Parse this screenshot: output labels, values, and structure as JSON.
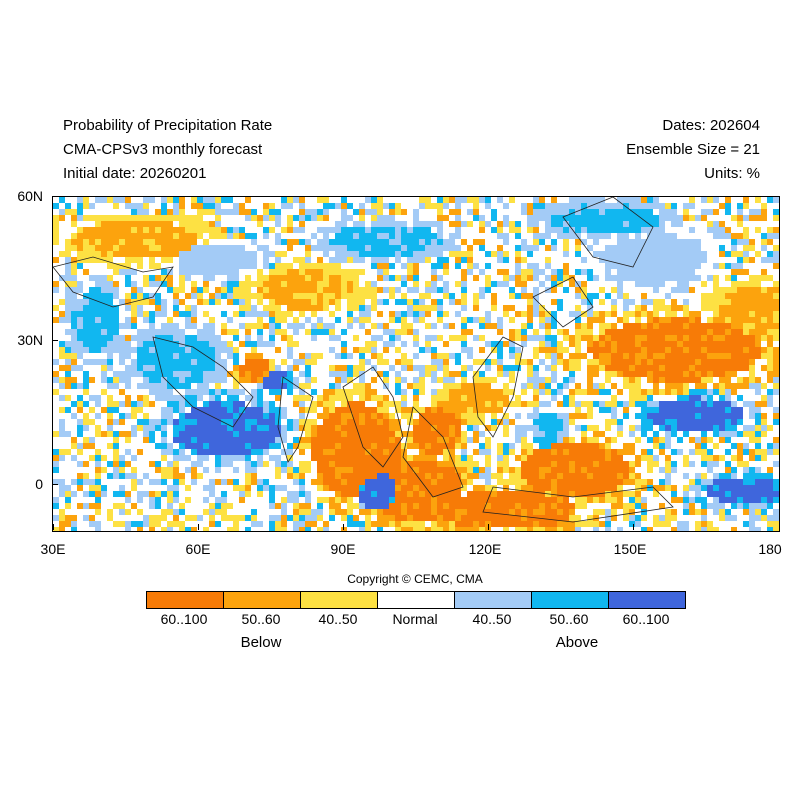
{
  "header": {
    "title_line1": "Probability of Precipitation Rate",
    "title_line2": "CMA-CPSv3 monthly forecast",
    "title_line3": "Initial date: 20260201",
    "dates": "Dates: 202604",
    "ensemble": "Ensemble Size = 21",
    "units": "Units: %"
  },
  "map": {
    "lat_ticks": [
      "60N",
      "30N",
      "0"
    ],
    "lon_ticks": [
      "30E",
      "60E",
      "90E",
      "120E",
      "150E",
      "180"
    ],
    "lon_range": [
      30,
      180
    ],
    "lat_range": [
      -10,
      60
    ]
  },
  "copyright": "Copyright © CEMC, CMA",
  "legend": {
    "items": [
      {
        "label": "60..100",
        "color": "#f77b07"
      },
      {
        "label": "50..60",
        "color": "#fca30d"
      },
      {
        "label": "40..50",
        "color": "#fde143"
      },
      {
        "label": "Normal",
        "color": "#ffffff"
      },
      {
        "label": "40..50",
        "color": "#a3cbf6"
      },
      {
        "label": "50..60",
        "color": "#11b7f0"
      },
      {
        "label": "60..100",
        "color": "#3f66dc"
      }
    ],
    "below_label": "Below",
    "above_label": "Above"
  }
}
